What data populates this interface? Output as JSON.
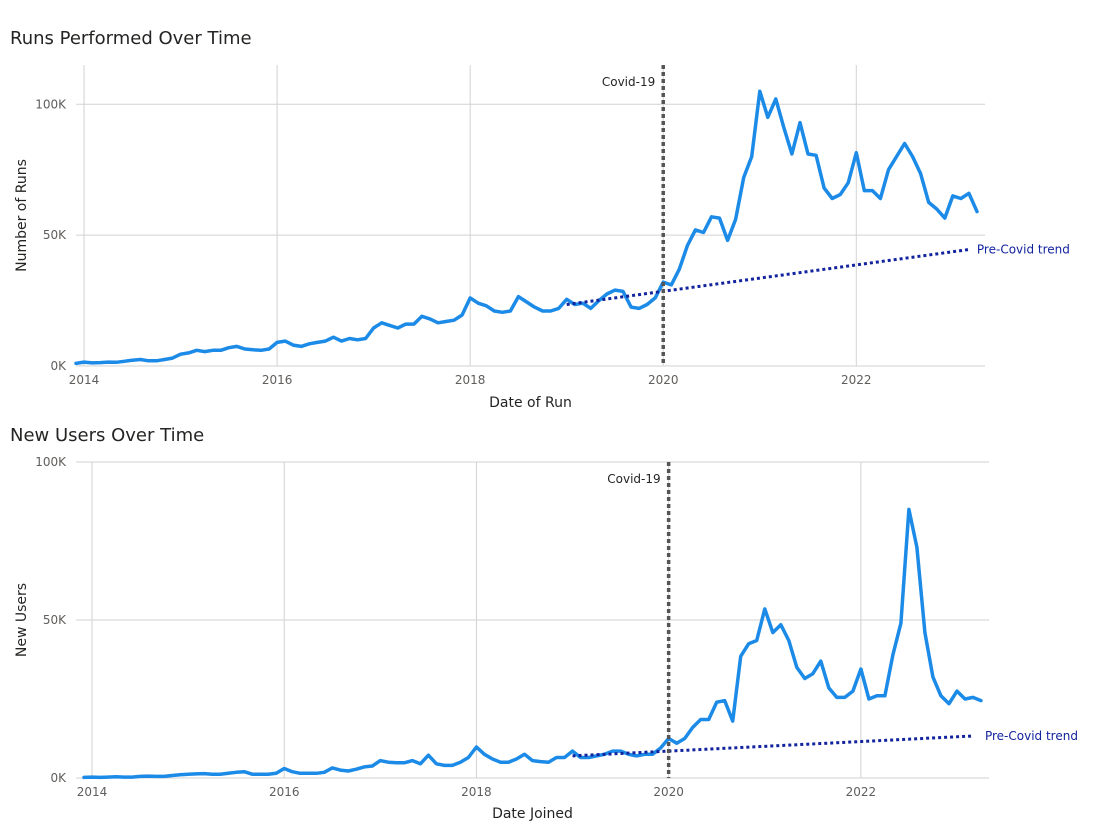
{
  "colors": {
    "series": "#1c8be8",
    "trend": "#12239e",
    "covid": "#555555"
  },
  "chart_data": [
    {
      "type": "line",
      "title": "Runs Performed Over Time",
      "xlabel": "Date of Run",
      "ylabel": "Number of Runs",
      "xlim": [
        "2013-12",
        "2023-05"
      ],
      "ylim": [
        0,
        115000
      ],
      "x_ticks": [
        {
          "label": "2014",
          "x": "2014-01"
        },
        {
          "label": "2016",
          "x": "2016-01"
        },
        {
          "label": "2018",
          "x": "2018-01"
        },
        {
          "label": "2020",
          "x": "2020-01"
        },
        {
          "label": "2022",
          "x": "2022-01"
        }
      ],
      "y_ticks": [
        {
          "label": "0K",
          "y": 0
        },
        {
          "label": "50K",
          "y": 50000
        },
        {
          "label": "100K",
          "y": 100000
        }
      ],
      "vline": {
        "label": "Covid-19",
        "x": "2020-01"
      },
      "trend": {
        "label": "Pre-Covid trend",
        "x": [
          "2019-01",
          "2023-03"
        ],
        "y": [
          23500,
          44500
        ]
      },
      "series": [
        {
          "x": [
            "2013-12",
            "2014-01",
            "2014-02",
            "2014-03",
            "2014-04",
            "2014-05",
            "2014-06",
            "2014-07",
            "2014-08",
            "2014-09",
            "2014-10",
            "2014-11",
            "2014-12",
            "2015-01",
            "2015-02",
            "2015-03",
            "2015-04",
            "2015-05",
            "2015-06",
            "2015-07",
            "2015-08",
            "2015-09",
            "2015-10",
            "2015-11",
            "2015-12",
            "2016-01",
            "2016-02",
            "2016-03",
            "2016-04",
            "2016-05",
            "2016-06",
            "2016-07",
            "2016-08",
            "2016-09",
            "2016-10",
            "2016-11",
            "2016-12",
            "2017-01",
            "2017-02",
            "2017-03",
            "2017-04",
            "2017-05",
            "2017-06",
            "2017-07",
            "2017-08",
            "2017-09",
            "2017-10",
            "2017-11",
            "2017-12",
            "2018-01",
            "2018-02",
            "2018-03",
            "2018-04",
            "2018-05",
            "2018-06",
            "2018-07",
            "2018-08",
            "2018-09",
            "2018-10",
            "2018-11",
            "2018-12",
            "2019-01",
            "2019-02",
            "2019-03",
            "2019-04",
            "2019-05",
            "2019-06",
            "2019-07",
            "2019-08",
            "2019-09",
            "2019-10",
            "2019-11",
            "2019-12",
            "2020-01",
            "2020-02",
            "2020-03",
            "2020-04",
            "2020-05",
            "2020-06",
            "2020-07",
            "2020-08",
            "2020-09",
            "2020-10",
            "2020-11",
            "2020-12",
            "2021-01",
            "2021-02",
            "2021-03",
            "2021-04",
            "2021-05",
            "2021-06",
            "2021-07",
            "2021-08",
            "2021-09",
            "2021-10",
            "2021-11",
            "2021-12",
            "2022-01",
            "2022-02",
            "2022-03",
            "2022-04",
            "2022-05",
            "2022-06",
            "2022-07",
            "2022-08",
            "2022-09",
            "2022-10",
            "2022-11",
            "2022-12",
            "2023-01",
            "2023-02",
            "2023-03",
            "2023-04"
          ],
          "values": [
            1000,
            1500,
            1200,
            1300,
            1500,
            1400,
            1800,
            2200,
            2500,
            2000,
            2000,
            2500,
            3000,
            4500,
            5000,
            6000,
            5500,
            6000,
            6000,
            7000,
            7500,
            6500,
            6200,
            6000,
            6500,
            9000,
            9500,
            8000,
            7500,
            8500,
            9000,
            9500,
            11000,
            9500,
            10500,
            10000,
            10500,
            14500,
            16500,
            15500,
            14500,
            16000,
            16000,
            19000,
            18000,
            16500,
            17000,
            17500,
            19500,
            26000,
            24000,
            23000,
            21000,
            20500,
            21000,
            26500,
            24500,
            22500,
            21000,
            21000,
            22000,
            25500,
            23500,
            24000,
            22000,
            25000,
            27500,
            29000,
            28500,
            22500,
            22000,
            23500,
            26000,
            32000,
            31000,
            37000,
            46000,
            52000,
            51000,
            57000,
            56500,
            48000,
            56000,
            72000,
            80000,
            105000,
            95000,
            102000,
            91000,
            81000,
            93000,
            81000,
            80500,
            68000,
            64000,
            65500,
            70000,
            81500,
            67000,
            67000,
            64000,
            75000,
            80000,
            85000,
            80000,
            73500,
            62500,
            60000,
            56500,
            65000,
            64000,
            66000,
            59000
          ]
        }
      ]
    },
    {
      "type": "line",
      "title": "New Users Over Time",
      "xlabel": "Date Joined",
      "ylabel": "New Users",
      "xlim": [
        "2013-11",
        "2023-05"
      ],
      "ylim": [
        0,
        100000
      ],
      "x_ticks": [
        {
          "label": "2014",
          "x": "2014-01"
        },
        {
          "label": "2016",
          "x": "2016-01"
        },
        {
          "label": "2018",
          "x": "2018-01"
        },
        {
          "label": "2020",
          "x": "2020-01"
        },
        {
          "label": "2022",
          "x": "2022-01"
        }
      ],
      "y_ticks": [
        {
          "label": "0K",
          "y": 0
        },
        {
          "label": "50K",
          "y": 50000
        },
        {
          "label": "100K",
          "y": 100000
        }
      ],
      "vline": {
        "label": "Covid-19",
        "x": "2020-01"
      },
      "trend": {
        "label": "Pre-Covid trend",
        "x": [
          "2019-01",
          "2023-03"
        ],
        "y": [
          7000,
          13300
        ]
      },
      "series": [
        {
          "x": [
            "2013-12",
            "2014-01",
            "2014-02",
            "2014-03",
            "2014-04",
            "2014-05",
            "2014-06",
            "2014-07",
            "2014-08",
            "2014-09",
            "2014-10",
            "2014-11",
            "2014-12",
            "2015-01",
            "2015-02",
            "2015-03",
            "2015-04",
            "2015-05",
            "2015-06",
            "2015-07",
            "2015-08",
            "2015-09",
            "2015-10",
            "2015-11",
            "2015-12",
            "2016-01",
            "2016-02",
            "2016-03",
            "2016-04",
            "2016-05",
            "2016-06",
            "2016-07",
            "2016-08",
            "2016-09",
            "2016-10",
            "2016-11",
            "2016-12",
            "2017-01",
            "2017-02",
            "2017-03",
            "2017-04",
            "2017-05",
            "2017-06",
            "2017-07",
            "2017-08",
            "2017-09",
            "2017-10",
            "2017-11",
            "2017-12",
            "2018-01",
            "2018-02",
            "2018-03",
            "2018-04",
            "2018-05",
            "2018-06",
            "2018-07",
            "2018-08",
            "2018-09",
            "2018-10",
            "2018-11",
            "2018-12",
            "2019-01",
            "2019-02",
            "2019-03",
            "2019-04",
            "2019-05",
            "2019-06",
            "2019-07",
            "2019-08",
            "2019-09",
            "2019-10",
            "2019-11",
            "2019-12",
            "2020-01",
            "2020-02",
            "2020-03",
            "2020-04",
            "2020-05",
            "2020-06",
            "2020-07",
            "2020-08",
            "2020-09",
            "2020-10",
            "2020-11",
            "2020-12",
            "2021-01",
            "2021-02",
            "2021-03",
            "2021-04",
            "2021-05",
            "2021-06",
            "2021-07",
            "2021-08",
            "2021-09",
            "2021-10",
            "2021-11",
            "2021-12",
            "2022-01",
            "2022-02",
            "2022-03",
            "2022-04",
            "2022-05",
            "2022-06",
            "2022-07",
            "2022-08",
            "2022-09",
            "2022-10",
            "2022-11",
            "2022-12",
            "2023-01",
            "2023-02",
            "2023-03",
            "2023-04"
          ],
          "values": [
            200,
            300,
            200,
            300,
            400,
            300,
            300,
            500,
            600,
            500,
            500,
            800,
            1000,
            1200,
            1300,
            1400,
            1200,
            1200,
            1500,
            1800,
            2000,
            1200,
            1200,
            1200,
            1500,
            3000,
            2000,
            1500,
            1500,
            1500,
            1800,
            3200,
            2500,
            2200,
            2800,
            3500,
            3800,
            5500,
            5000,
            4800,
            4800,
            5500,
            4500,
            7200,
            4500,
            4000,
            4000,
            5000,
            6500,
            9800,
            7500,
            6000,
            5000,
            5000,
            6000,
            7500,
            5500,
            5200,
            5000,
            6500,
            6500,
            8500,
            6500,
            6500,
            7000,
            7500,
            8500,
            8500,
            7500,
            7000,
            7500,
            7500,
            9500,
            12500,
            11000,
            12500,
            16000,
            18500,
            18500,
            24000,
            24500,
            18000,
            38500,
            42500,
            43500,
            53500,
            46000,
            48500,
            43500,
            35000,
            31500,
            33000,
            37000,
            28500,
            25500,
            25500,
            27500,
            34500,
            25000,
            26000,
            26000,
            39000,
            49000,
            85000,
            73000,
            46000,
            32000,
            26000,
            23500,
            27500,
            25000,
            25500,
            24500
          ]
        }
      ]
    }
  ]
}
